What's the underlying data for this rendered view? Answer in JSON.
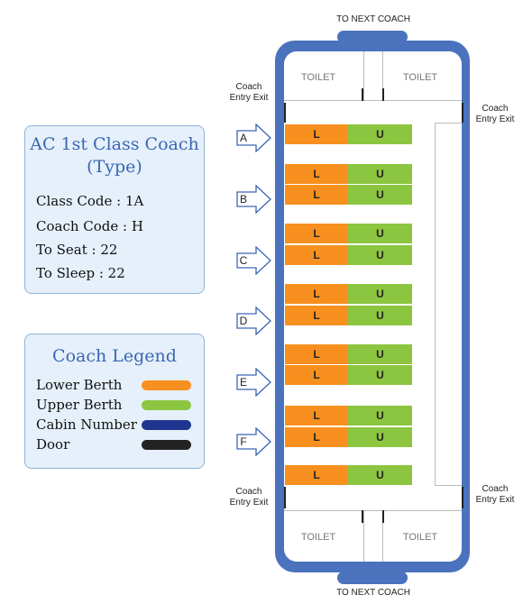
{
  "coach_info": {
    "title_line1": "AC 1st Class Coach",
    "title_line2": "(Type)",
    "class_code": "Class Code : 1A",
    "coach_code": "Coach Code : H",
    "to_seat": "To Seat : 22",
    "to_sleep": "To Sleep : 22"
  },
  "legend": {
    "title": "Coach Legend",
    "items": [
      {
        "label": "Lower Berth",
        "color": "#f7901e"
      },
      {
        "label": "Upper Berth",
        "color": "#8cc540"
      },
      {
        "label": "Cabin Number",
        "color": "#1f3590"
      },
      {
        "label": "Door",
        "color": "#222222"
      }
    ]
  },
  "coach": {
    "to_next_top": "TO NEXT COACH",
    "to_next_bottom": "TO NEXT COACH",
    "entry_exit": {
      "line1": "Coach",
      "line2": "Entry Exit"
    },
    "toilet": "TOILET",
    "lower_label": "L",
    "upper_label": "U",
    "cabins": [
      "A",
      "B",
      "C",
      "D",
      "E",
      "F"
    ],
    "outline_color": "#4a72bd"
  }
}
